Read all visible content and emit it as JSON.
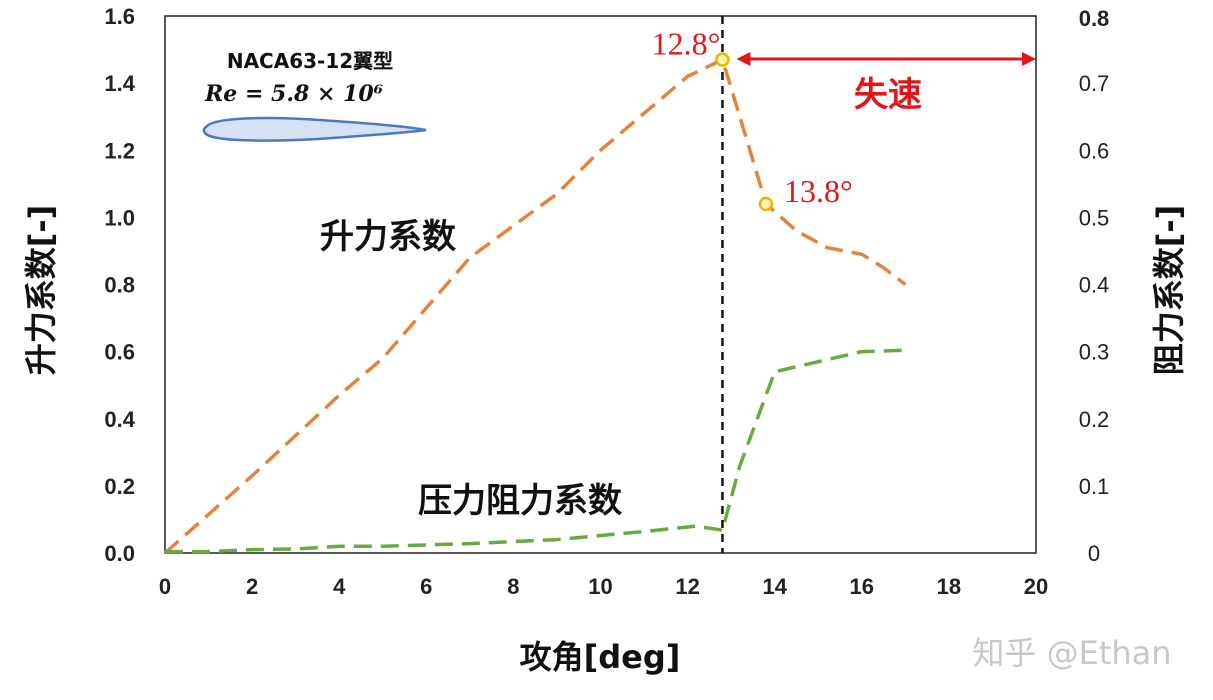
{
  "chart_data": {
    "type": "line",
    "xlabel": "攻角[deg]",
    "ylabel": "升力系数[-]",
    "y2label": "阻力系数[-]",
    "xlim": [
      0,
      20
    ],
    "ylim": [
      0,
      1.6
    ],
    "y2lim": [
      0,
      0.8
    ],
    "x_ticks": [
      "0",
      "2",
      "4",
      "6",
      "8",
      "10",
      "12",
      "14",
      "16",
      "18",
      "20"
    ],
    "y_ticks": [
      "0.0",
      "0.2",
      "0.4",
      "0.6",
      "0.8",
      "1.0",
      "1.2",
      "1.4",
      "1.6"
    ],
    "y2_ticks": [
      "0",
      "0.1",
      "0.2",
      "0.3",
      "0.4",
      "0.5",
      "0.6",
      "0.7",
      "0.8"
    ],
    "series": [
      {
        "name": "升力系数",
        "axis": "left",
        "color": "#e4833a",
        "x": [
          0,
          2,
          4,
          5,
          7,
          9,
          10,
          12,
          12.8,
          13.2,
          13.8,
          14.5,
          15.2,
          16,
          16.5,
          17
        ],
        "y": [
          0.0,
          0.23,
          0.47,
          0.58,
          0.88,
          1.07,
          1.2,
          1.42,
          1.47,
          1.3,
          1.04,
          0.96,
          0.91,
          0.89,
          0.85,
          0.8
        ]
      },
      {
        "name": "压力阻力系数",
        "axis": "right",
        "color": "#6aa843",
        "x": [
          0,
          1,
          2,
          3,
          4,
          5,
          7,
          9,
          11,
          12.2,
          12.8,
          13.2,
          14,
          15,
          16,
          17
        ],
        "y": [
          0.002,
          0.002,
          0.005,
          0.006,
          0.01,
          0.01,
          0.014,
          0.02,
          0.032,
          0.04,
          0.034,
          0.13,
          0.27,
          0.285,
          0.3,
          0.302
        ]
      }
    ],
    "stall_line_x": 12.8,
    "annotations": {
      "peak_label": "12.8°",
      "peak_x": 12.8,
      "peak_y": 1.47,
      "post_label": "13.8°",
      "post_x": 13.8,
      "post_y": 1.04,
      "stall_text": "失速",
      "stall_arrow_x": [
        12.8,
        20
      ]
    },
    "airfoil": {
      "name": "NACA63-12翼型",
      "reynolds": "Re = 5.8 × 10⁶"
    }
  },
  "watermark": "知乎 @Ethan",
  "colors": {
    "lift": "#e4833a",
    "drag": "#6aa843",
    "marker_fill": "#fff3b0",
    "marker_stroke": "#e8b500",
    "stall": "#e0161a",
    "airfoil_fill": "#d6e2f4",
    "airfoil_stroke": "#4a78c2"
  }
}
